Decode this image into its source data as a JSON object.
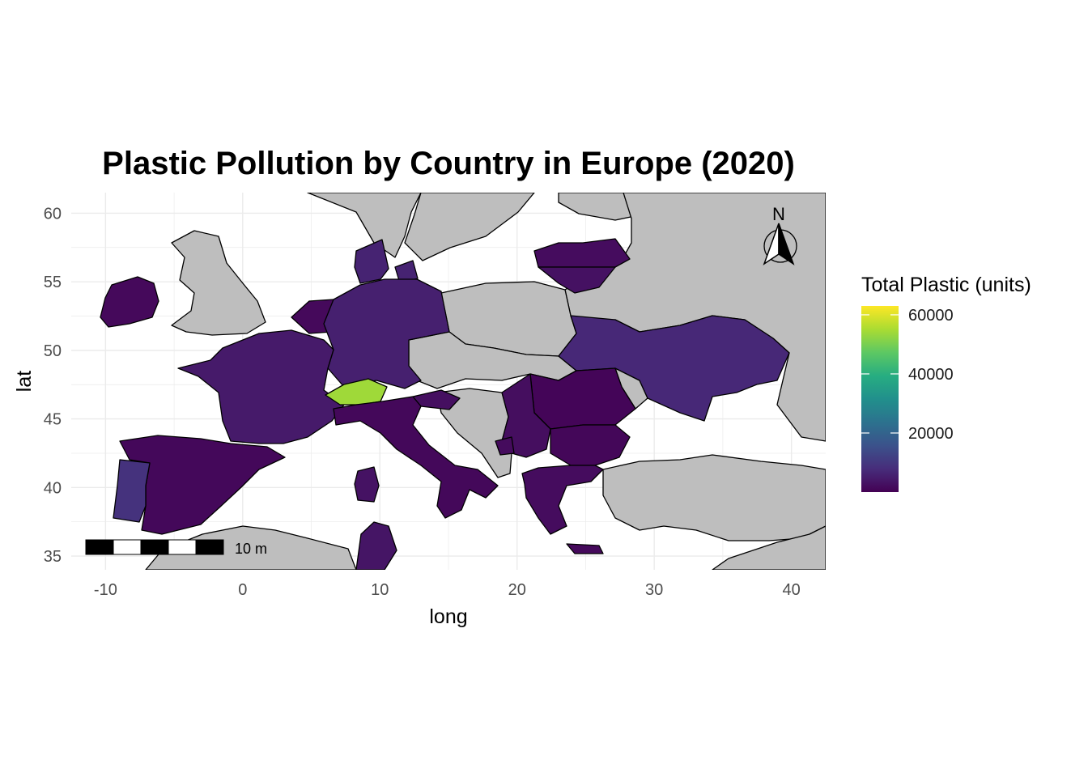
{
  "title": "Plastic Pollution by Country in Europe (2020)",
  "xlabel": "long",
  "ylabel": "lat",
  "x_ticks": [
    -10,
    0,
    10,
    20,
    30,
    40
  ],
  "y_ticks": [
    35,
    40,
    45,
    50,
    55,
    60
  ],
  "xlim": [
    -12.5,
    42.5
  ],
  "ylim": [
    34.0,
    61.5
  ],
  "legend": {
    "title": "Total Plastic (units)",
    "labels": [
      "20000",
      "40000",
      "60000"
    ],
    "values": [
      20000,
      40000,
      60000
    ],
    "range": [
      0,
      63000
    ],
    "palette": "viridis"
  },
  "scale_bar": {
    "label": "10 m"
  },
  "north_arrow": {
    "label": "N"
  },
  "colors": {
    "no_data": "#bebebe",
    "background": "#ffffff",
    "grid": "#ebebeb"
  },
  "chart_data": {
    "type": "heatmap",
    "map_type": "choropleth",
    "value_variable": "Total Plastic (units)",
    "regions": [
      {
        "name": "Switzerland",
        "value": 54000
      },
      {
        "name": "Portugal",
        "value": 9000
      },
      {
        "name": "Ukraine",
        "value": 7000
      },
      {
        "name": "Denmark",
        "value": 6000
      },
      {
        "name": "Germany",
        "value": 5500
      },
      {
        "name": "France",
        "value": 4500
      },
      {
        "name": "Tunisia",
        "value": 3500
      },
      {
        "name": "Sardinia",
        "value": 3000
      },
      {
        "name": "Lithuania",
        "value": 2800
      },
      {
        "name": "Latvia",
        "value": 2000
      },
      {
        "name": "Slovenia",
        "value": 2500
      },
      {
        "name": "Serbia",
        "value": 2300
      },
      {
        "name": "Montenegro",
        "value": 1800
      },
      {
        "name": "Greece",
        "value": 2000
      },
      {
        "name": "Crete",
        "value": 1500
      },
      {
        "name": "Ireland",
        "value": 1500
      },
      {
        "name": "Netherlands",
        "value": 1500
      },
      {
        "name": "Spain",
        "value": 1200
      },
      {
        "name": "Italy",
        "value": 1200
      },
      {
        "name": "Bulgaria",
        "value": 1000
      },
      {
        "name": "Romania",
        "value": 800
      }
    ]
  }
}
